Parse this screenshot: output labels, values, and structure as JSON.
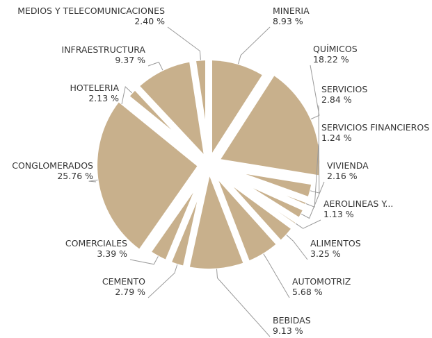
{
  "chart_data": {
    "type": "pie",
    "title": "",
    "start_at": "12 o'clock",
    "direction": "clockwise",
    "colors": {
      "slice": "#C8B08C",
      "background": "#FFFFFF",
      "label": "#333333",
      "leader_line": "#9A9A9A"
    },
    "slices": [
      {
        "label": "MINERIA",
        "value": 8.93,
        "value_label": "8.93 %",
        "exploded": false
      },
      {
        "label": "QUÍMICOS",
        "value": 18.22,
        "value_label": "18.22 %",
        "exploded": true
      },
      {
        "label": "SERVICIOS",
        "value": 2.84,
        "value_label": "2.84 %",
        "exploded": false
      },
      {
        "label": "SERVICIOS FINANCIEROS",
        "value": 1.24,
        "value_label": "1.24 %",
        "exploded": false
      },
      {
        "label": "VIVIENDA",
        "value": 2.16,
        "value_label": "2.16 %",
        "exploded": false
      },
      {
        "label": "AEROLINEAS Y...",
        "value": 1.13,
        "value_label": "1.13 %",
        "exploded": false
      },
      {
        "label": "ALIMENTOS",
        "value": 3.25,
        "value_label": "3.25 %",
        "exploded": false
      },
      {
        "label": "AUTOMOTRIZ",
        "value": 5.68,
        "value_label": "5.68 %",
        "exploded": false
      },
      {
        "label": "BEBIDAS",
        "value": 9.13,
        "value_label": "9.13 %",
        "exploded": false
      },
      {
        "label": "CEMENTO",
        "value": 2.79,
        "value_label": "2.79 %",
        "exploded": false
      },
      {
        "label": "COMERCIALES",
        "value": 3.39,
        "value_label": "3.39 %",
        "exploded": false
      },
      {
        "label": "CONGLOMERADOS",
        "value": 25.76,
        "value_label": "25.76 %",
        "exploded": true
      },
      {
        "label": "HOTELERIA",
        "value": 2.13,
        "value_label": "2.13 %",
        "exploded": false
      },
      {
        "label": "INFRAESTRUCTURA",
        "value": 9.37,
        "value_label": "9.37 %",
        "exploded": false
      },
      {
        "label": "MEDIOS Y TELECOMUNICACIONES",
        "value": 2.4,
        "value_label": "2.40 %",
        "exploded": false
      }
    ]
  }
}
